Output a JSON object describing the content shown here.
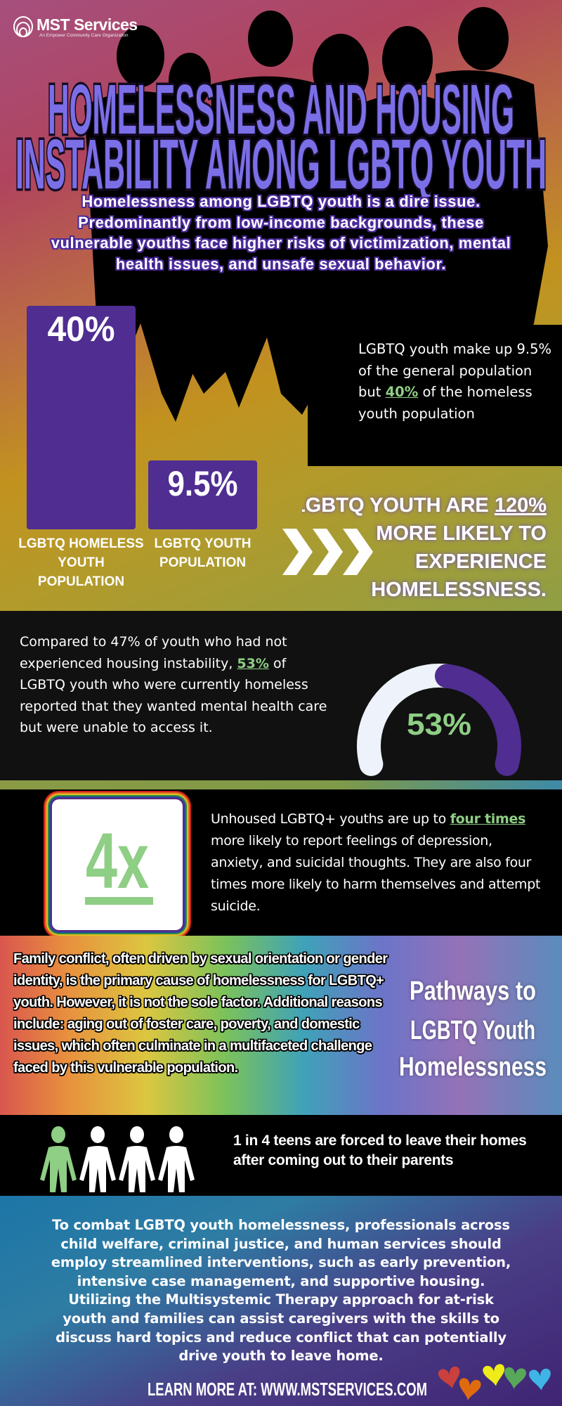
{
  "logo": {
    "name": "MST Services",
    "tagline": "An Empower Community Care Organization"
  },
  "title": {
    "line1": "HOMELESSNESS AND HOUSING",
    "line2": "INSTABILITY AMONG LGBTQ YOUTH"
  },
  "intro": "Homelessness among LGBTQ youth is a dire issue. Predominantly from low-income backgrounds, these vulnerable youths face higher risks of victimization, mental health issues, and unsafe sexual behavior.",
  "chart_data": {
    "type": "bar",
    "categories": [
      "LGBTQ HOMELESS YOUTH POPULATION",
      "LGBTQ YOUTH POPULATION"
    ],
    "values": [
      40,
      9.5
    ],
    "value_labels": [
      "40%",
      "9.5%"
    ],
    "label_lines": [
      [
        "LGBTQ HOMELESS",
        "YOUTH",
        "POPULATION"
      ],
      [
        "LGBTQ YOUTH",
        "POPULATION"
      ]
    ],
    "bar_color": "#4f2d91"
  },
  "stat_box": {
    "pre": "LGBTQ youth make up 9.5% of the general population but ",
    "highlight": "40%",
    "post": " of the homeless youth population"
  },
  "likely": {
    "line1_pre": "LGBTQ YOUTH ARE ",
    "line1_hl": "120%",
    "line2": "MORE LIKELY TO",
    "line3": "EXPERIENCE",
    "line4": "HOMELESSNESS."
  },
  "mental_health": {
    "pre": "Compared to 47% of youth who had not experienced housing instability, ",
    "highlight": "53%",
    "post": " of LGBTQ youth who were currently homeless reported that they wanted mental health care but were unable to access it."
  },
  "gauge": {
    "value": 53,
    "label": "53%",
    "fill_color": "#eef3fb",
    "accent_color": "#4f2d91",
    "label_color": "#8fce85"
  },
  "four_x": {
    "label": "4x",
    "pre": "Unhoused LGBTQ+ youths are up to ",
    "highlight": "four times",
    "post": " more likely to report feelings of depression, anxiety, and suicidal thoughts. They are also four times more likely to harm themselves and attempt suicide."
  },
  "pathways": {
    "text": "Family conflict, often driven by sexual orientation or gender identity, is the primary cause of homelessness for LGBTQ+ youth. However, it is not the sole factor. Additional reasons include: aging out of foster care, poverty, and domestic issues, which often culminate in a multifaceted challenge faced by this vulnerable population.",
    "heading1": "Pathways to",
    "heading2": "LGBTQ Youth",
    "heading3": "Homelessness"
  },
  "one_in_four": {
    "text": "1 in 4 teens are forced to leave their homes after coming out to their parents",
    "highlighted_count": 1,
    "total": 4,
    "accent_color": "#8fce85"
  },
  "conclusion": "To combat LGBTQ youth homelessness, professionals across child welfare, criminal justice, and human services should employ streamlined interventions, such as early prevention, intensive case management, and supportive housing. Utilizing the Multisystemic Therapy approach for at-risk youth and families can assist caregivers with the skills to discuss hard topics and reduce conflict that can potentially drive youth to leave home.",
  "footer": {
    "learn_more": "LEARN MORE AT: WWW.MSTSERVICES.COM",
    "heart_colors": [
      "#c9403c",
      "#e06a10",
      "#f0ec1a",
      "#58a85a",
      "#3fb4e6"
    ]
  }
}
